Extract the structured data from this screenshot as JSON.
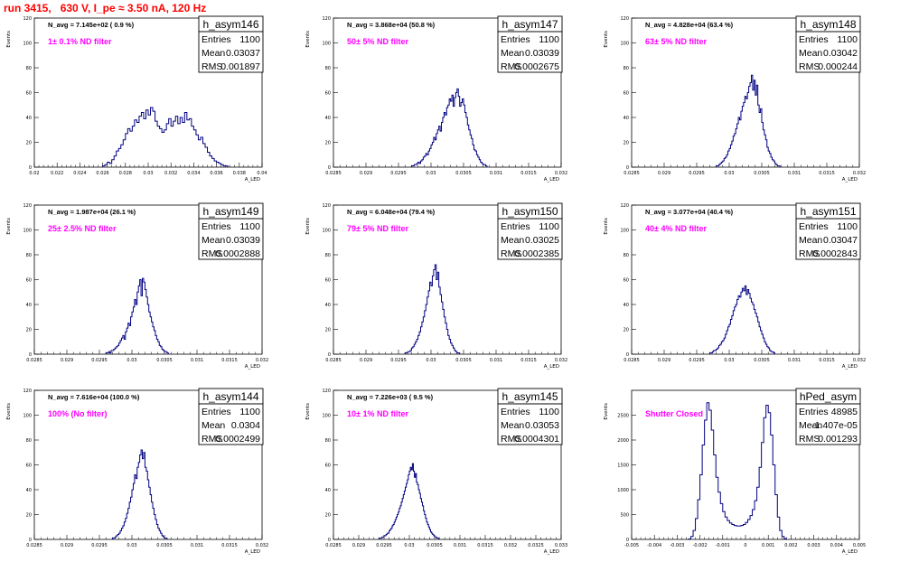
{
  "run_title": "run 3415,   630 V, I_pe ≈ 3.50 nA, 120 Hz",
  "chart_data": [
    {
      "type": "histogram",
      "name": "h_asym146",
      "stats": {
        "entries_label": "Entries",
        "entries": "1100",
        "mean_label": "Mean",
        "mean": "0.03037",
        "rms_label": "RMS",
        "rms": "0.001897"
      },
      "navg": "N_avg = 7.145e+02 ( 0.9 %)",
      "filter": "1± 0.1% ND filter",
      "ylabel": "Events",
      "xlabel": "A_LED",
      "xlim": [
        0.02,
        0.04
      ],
      "ylim": [
        0,
        120
      ],
      "xticks": [
        "0.02",
        "0.022",
        "0.024",
        "0.026",
        "0.028",
        "0.03",
        "0.032",
        "0.034",
        "0.036",
        "0.038",
        "0.04"
      ],
      "yticks": [
        "0",
        "20",
        "40",
        "60",
        "80",
        "100",
        "120"
      ],
      "bins": {
        "start": 0.026,
        "width": 0.0002,
        "counts": [
          1,
          2,
          4,
          3,
          6,
          9,
          13,
          15,
          18,
          22,
          27,
          31,
          29,
          33,
          38,
          36,
          41,
          44,
          39,
          46,
          42,
          48,
          45,
          37,
          33,
          31,
          28,
          30,
          35,
          39,
          33,
          37,
          41,
          35,
          40,
          36,
          44,
          38,
          39,
          33,
          30,
          26,
          22,
          24,
          19,
          16,
          12,
          9,
          7,
          5,
          4,
          3,
          2,
          1,
          1
        ]
      }
    },
    {
      "type": "histogram",
      "name": "h_asym147",
      "stats": {
        "entries_label": "Entries",
        "entries": "1100",
        "mean_label": "Mean",
        "mean": "0.03039",
        "rms_label": "RMS",
        "rms": "0.0002675"
      },
      "navg": "N_avg = 3.868e+04 (50.8 %)",
      "filter": "50± 5% ND filter",
      "ylabel": "Events",
      "xlabel": "A_LED",
      "xlim": [
        0.0285,
        0.032
      ],
      "ylim": [
        0,
        120
      ],
      "xticks": [
        "0.0285",
        "0.029",
        "0.0295",
        "0.03",
        "0.0305",
        "0.031",
        "0.0315",
        "0.032"
      ],
      "yticks": [
        "0",
        "20",
        "40",
        "60",
        "80",
        "100",
        "120"
      ],
      "bins": {
        "start": 0.0297,
        "width": 2e-05,
        "counts": [
          1,
          1,
          2,
          2,
          3,
          4,
          3,
          5,
          6,
          8,
          9,
          11,
          10,
          13,
          15,
          18,
          20,
          24,
          22,
          27,
          30,
          33,
          29,
          36,
          40,
          44,
          42,
          48,
          50,
          55,
          53,
          58,
          49,
          56,
          60,
          63,
          57,
          49,
          52,
          55,
          50,
          44,
          40,
          34,
          30,
          26,
          23,
          18,
          14,
          13,
          10,
          8,
          6,
          4,
          3,
          2,
          2,
          1
        ]
      }
    },
    {
      "type": "histogram",
      "name": "h_asym148",
      "stats": {
        "entries_label": "Entries",
        "entries": "1100",
        "mean_label": "Mean",
        "mean": "0.03042",
        "rms_label": "RMS",
        "rms": "0.000244"
      },
      "navg": "N_avg = 4.828e+04 (63.4 %)",
      "filter": "63± 5% ND filter",
      "ylabel": "Events",
      "xlabel": "A_LED",
      "xlim": [
        0.0285,
        0.032
      ],
      "ylim": [
        0,
        120
      ],
      "xticks": [
        "0.0285",
        "0.029",
        "0.0295",
        "0.03",
        "0.0305",
        "0.031",
        "0.0315",
        "0.032"
      ],
      "yticks": [
        "0",
        "20",
        "40",
        "60",
        "80",
        "100",
        "120"
      ],
      "bins": {
        "start": 0.0298,
        "width": 2e-05,
        "counts": [
          1,
          1,
          2,
          3,
          4,
          5,
          7,
          8,
          10,
          13,
          15,
          18,
          21,
          25,
          27,
          31,
          35,
          40,
          38,
          45,
          49,
          52,
          57,
          55,
          60,
          65,
          68,
          74,
          62,
          70,
          58,
          66,
          50,
          44,
          47,
          36,
          30,
          26,
          22,
          16,
          13,
          11,
          8,
          6,
          5,
          3,
          2,
          1,
          1
        ]
      }
    },
    {
      "type": "histogram",
      "name": "h_asym149",
      "stats": {
        "entries_label": "Entries",
        "entries": "1100",
        "mean_label": "Mean",
        "mean": "0.03039",
        "rms_label": "RMS",
        "rms": "0.0002888"
      },
      "navg": "N_avg = 1.987e+04 (26.1 %)",
      "filter": "25± 2.5% ND filter",
      "ylabel": "Events",
      "xlabel": "A_LED",
      "xlim": [
        0.0285,
        0.032
      ],
      "ylim": [
        0,
        120
      ],
      "xticks": [
        "0.0285",
        "0.029",
        "0.0295",
        "0.03",
        "0.0305",
        "0.031",
        "0.0315",
        "0.032"
      ],
      "yticks": [
        "0",
        "20",
        "40",
        "60",
        "80",
        "100",
        "120"
      ],
      "bins": {
        "start": 0.0296,
        "width": 2e-05,
        "counts": [
          1,
          1,
          2,
          1,
          3,
          3,
          4,
          5,
          6,
          7,
          9,
          11,
          13,
          15,
          12,
          18,
          21,
          25,
          23,
          30,
          34,
          38,
          44,
          40,
          50,
          55,
          60,
          47,
          61,
          58,
          52,
          46,
          40,
          34,
          30,
          26,
          22,
          19,
          15,
          12,
          10,
          7,
          6,
          4,
          3,
          2,
          2,
          1
        ]
      }
    },
    {
      "type": "histogram",
      "name": "h_asym150",
      "stats": {
        "entries_label": "Entries",
        "entries": "1100",
        "mean_label": "Mean",
        "mean": "0.03025",
        "rms_label": "RMS",
        "rms": "0.0002385"
      },
      "navg": "N_avg = 6.048e+04 (79.4 %)",
      "filter": "79± 5% ND filter",
      "ylabel": "Events",
      "xlabel": "A_LED",
      "xlim": [
        0.0285,
        0.032
      ],
      "ylim": [
        0,
        120
      ],
      "xticks": [
        "0.0285",
        "0.029",
        "0.0295",
        "0.03",
        "0.0305",
        "0.031",
        "0.0315",
        "0.032"
      ],
      "yticks": [
        "0",
        "20",
        "40",
        "60",
        "80",
        "100",
        "120"
      ],
      "bins": {
        "start": 0.0296,
        "width": 2e-05,
        "counts": [
          1,
          1,
          2,
          2,
          3,
          5,
          6,
          8,
          10,
          12,
          15,
          18,
          22,
          26,
          30,
          35,
          40,
          46,
          51,
          58,
          55,
          63,
          68,
          72,
          60,
          66,
          54,
          48,
          42,
          36,
          30,
          25,
          20,
          15,
          12,
          9,
          7,
          5,
          3,
          2,
          1,
          1
        ]
      }
    },
    {
      "type": "histogram",
      "name": "h_asym151",
      "stats": {
        "entries_label": "Entries",
        "entries": "1100",
        "mean_label": "Mean",
        "mean": "0.03047",
        "rms_label": "RMS",
        "rms": "0.0002843"
      },
      "navg": "N_avg = 3.077e+04 (40.4 %)",
      "filter": "40± 4% ND filter",
      "ylabel": "Events",
      "xlabel": "A_LED",
      "xlim": [
        0.0285,
        0.032
      ],
      "ylim": [
        0,
        120
      ],
      "xticks": [
        "0.0285",
        "0.029",
        "0.0295",
        "0.03",
        "0.0305",
        "0.031",
        "0.0315",
        "0.032"
      ],
      "yticks": [
        "0",
        "20",
        "40",
        "60",
        "80",
        "100",
        "120"
      ],
      "bins": {
        "start": 0.0297,
        "width": 2e-05,
        "counts": [
          1,
          1,
          2,
          3,
          3,
          4,
          5,
          7,
          8,
          10,
          11,
          13,
          16,
          19,
          22,
          24,
          28,
          31,
          35,
          38,
          40,
          44,
          47,
          46,
          50,
          53,
          51,
          55,
          48,
          52,
          49,
          45,
          42,
          40,
          36,
          33,
          30,
          26,
          22,
          19,
          16,
          13,
          10,
          8,
          6,
          5,
          3,
          2,
          2,
          1
        ]
      }
    },
    {
      "type": "histogram",
      "name": "h_asym144",
      "stats": {
        "entries_label": "Entries",
        "entries": "1100",
        "mean_label": "Mean",
        "mean": "0.0304",
        "rms_label": "RMS",
        "rms": "0.0002499"
      },
      "navg": "N_avg = 7.616e+04 (100.0 %)",
      "filter": "100% (No filter)",
      "ylabel": "Events",
      "xlabel": "A_LED",
      "xlim": [
        0.0285,
        0.032
      ],
      "ylim": [
        0,
        120
      ],
      "xticks": [
        "0.0285",
        "0.029",
        "0.0295",
        "0.03",
        "0.0305",
        "0.031",
        "0.0315",
        "0.032"
      ],
      "yticks": [
        "0",
        "20",
        "40",
        "60",
        "80",
        "100",
        "120"
      ],
      "bins": {
        "start": 0.0297,
        "width": 2e-05,
        "counts": [
          1,
          1,
          2,
          3,
          4,
          5,
          7,
          9,
          11,
          14,
          17,
          21,
          25,
          30,
          34,
          40,
          45,
          52,
          49,
          58,
          62,
          68,
          72,
          65,
          70,
          58,
          55,
          48,
          42,
          36,
          30,
          25,
          20,
          16,
          12,
          9,
          7,
          5,
          3,
          2,
          1,
          1
        ]
      }
    },
    {
      "type": "histogram",
      "name": "h_asym145",
      "stats": {
        "entries_label": "Entries",
        "entries": "1100",
        "mean_label": "Mean",
        "mean": "0.03053",
        "rms_label": "RMS",
        "rms": "0.0004301"
      },
      "navg": "N_avg = 7.226e+03 ( 9.5 %)",
      "filter": "10± 1% ND filter",
      "ylabel": "Events",
      "xlabel": "A_LED",
      "xlim": [
        0.0285,
        0.033
      ],
      "ylim": [
        0,
        120
      ],
      "xticks": [
        "0.0285",
        "0.029",
        "0.0295",
        "0.03",
        "0.0305",
        "0.031",
        "0.0315",
        "0.032",
        "0.0325",
        "0.033"
      ],
      "yticks": [
        "0",
        "20",
        "40",
        "60",
        "80",
        "100",
        "120"
      ],
      "bins": {
        "start": 0.0294,
        "width": 2e-05,
        "counts": [
          1,
          1,
          1,
          2,
          2,
          3,
          3,
          4,
          5,
          5,
          7,
          8,
          9,
          11,
          12,
          14,
          16,
          18,
          20,
          22,
          25,
          27,
          30,
          33,
          36,
          39,
          42,
          45,
          48,
          52,
          55,
          58,
          56,
          61,
          55,
          50,
          53,
          46,
          44,
          40,
          37,
          33,
          30,
          27,
          23,
          20,
          17,
          14,
          12,
          10,
          8,
          6,
          5,
          4,
          3,
          2,
          2,
          1,
          1
        ]
      }
    },
    {
      "type": "histogram",
      "name": "hPed_asym",
      "stats": {
        "entries_label": "Entries",
        "entries": "48985",
        "mean_label": "Mean",
        "mean": "-1.407e-05",
        "rms_label": "RMS",
        "rms": "0.001293"
      },
      "navg": "",
      "filter": "Shutter Closed",
      "ylabel": "Events",
      "xlabel": "A_LED",
      "xlim": [
        -0.005,
        0.005
      ],
      "ylim": [
        0,
        3000
      ],
      "xticks": [
        "-0.005",
        "-0.004",
        "-0.003",
        "-0.002",
        "-0.001",
        "0",
        "0.001",
        "0.002",
        "0.003",
        "0.004",
        "0.005"
      ],
      "yticks": [
        "0",
        "500",
        "1000",
        "1500",
        "2000",
        "2500"
      ],
      "bins": {
        "start": -0.0025,
        "width": 0.0001,
        "counts": [
          10,
          60,
          180,
          420,
          800,
          1300,
          1900,
          2400,
          2750,
          2600,
          2200,
          1700,
          1250,
          950,
          720,
          560,
          450,
          380,
          330,
          300,
          280,
          270,
          270,
          280,
          300,
          340,
          400,
          480,
          600,
          780,
          1050,
          1450,
          1950,
          2450,
          2700,
          2550,
          2100,
          1500,
          900,
          450,
          180,
          60,
          15
        ]
      }
    }
  ]
}
